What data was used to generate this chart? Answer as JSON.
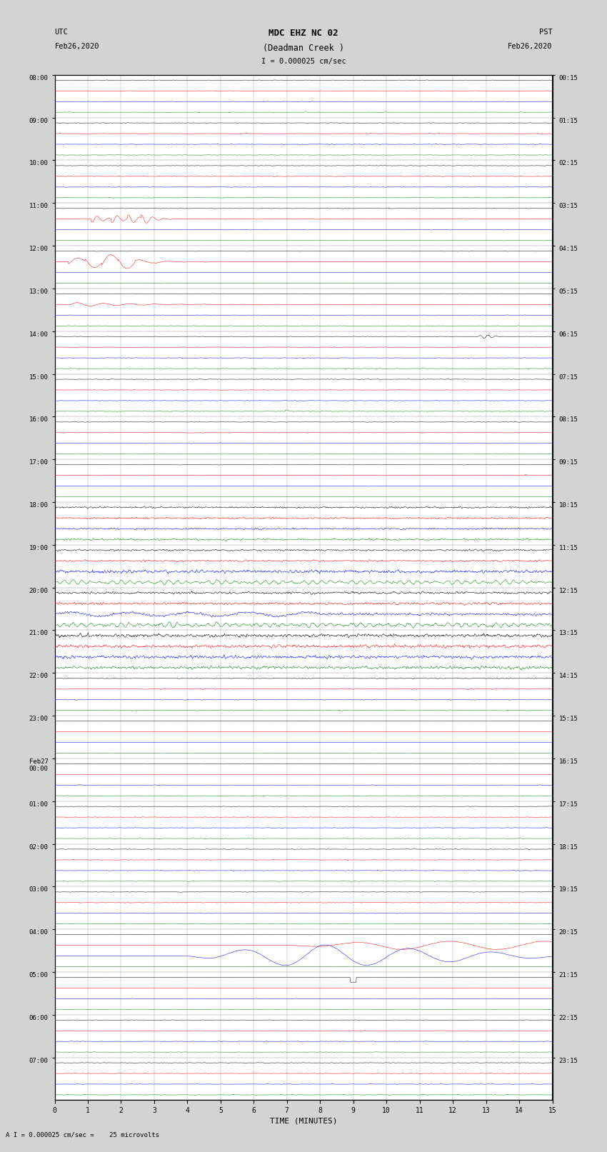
{
  "title_line1": "MDC EHZ NC 02",
  "title_line2": "(Deadman Creek )",
  "scale_label": "I = 0.000025 cm/sec",
  "scale_label2": "A I = 0.000025 cm/sec =    25 microvolts",
  "utc_label1": "UTC",
  "utc_label2": "Feb26,2020",
  "pst_label1": "PST",
  "pst_label2": "Feb26,2020",
  "xlabel": "TIME (MINUTES)",
  "left_times": [
    "08:00",
    "09:00",
    "10:00",
    "11:00",
    "12:00",
    "13:00",
    "14:00",
    "15:00",
    "16:00",
    "17:00",
    "18:00",
    "19:00",
    "20:00",
    "21:00",
    "22:00",
    "23:00",
    "Feb27\n00:00",
    "01:00",
    "02:00",
    "03:00",
    "04:00",
    "05:00",
    "06:00",
    "07:00"
  ],
  "right_times": [
    "00:15",
    "01:15",
    "02:15",
    "03:15",
    "04:15",
    "05:15",
    "06:15",
    "07:15",
    "08:15",
    "09:15",
    "10:15",
    "11:15",
    "12:15",
    "13:15",
    "14:15",
    "15:15",
    "16:15",
    "17:15",
    "18:15",
    "19:15",
    "20:15",
    "21:15",
    "22:15",
    "23:15"
  ],
  "n_rows": 24,
  "n_traces_per_row": 4,
  "minutes_per_row": 15,
  "colors": [
    "black",
    "red",
    "blue",
    "green"
  ],
  "bg_color": "#d3d3d3",
  "plot_bg": "#d3d3d3",
  "line_width": 0.35,
  "noise_scale": 0.025,
  "seed": 42
}
